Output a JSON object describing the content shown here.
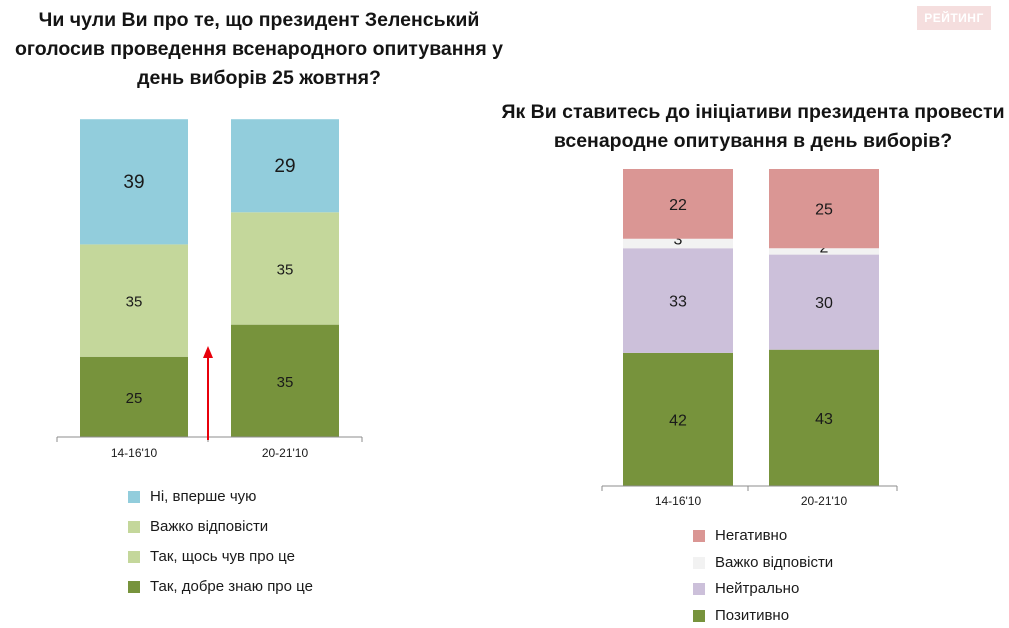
{
  "brand_label": "РЕЙТИНГ",
  "charts": [
    {
      "title": "Чи чули Ви про те, що президент Зеленський оголосив проведення  всенародного опитування у день виборів 25 жовтня?",
      "legend": [
        {
          "label": "Ні, вперше чую",
          "color": "#92cddc"
        },
        {
          "label": "Важко відповісти",
          "color": "#c4d79b"
        },
        {
          "label": "Так, щось чув про це",
          "color": "#c4d79b"
        },
        {
          "label": "Так, добре знаю про це",
          "color": "#77933c"
        }
      ]
    },
    {
      "title": "Як Ви ставитесь до ініціативи президента провести всенародне опитування в день виборів?",
      "legend": [
        {
          "label": "Негативно",
          "color": "#da9694"
        },
        {
          "label": "Важко відповісти",
          "color": "#f2f2f2"
        },
        {
          "label": "Нейтрально",
          "color": "#ccc0da"
        },
        {
          "label": "Позитивно",
          "color": "#77933c"
        }
      ]
    }
  ],
  "chart_data": [
    {
      "type": "bar",
      "stacked": true,
      "categories": [
        "14-16'10",
        "20-21'10"
      ],
      "series": [
        {
          "name": "Так, добре знаю про це",
          "values": [
            25,
            35
          ],
          "color": "#77933c"
        },
        {
          "name": "Так, щось чув про це",
          "values": [
            35,
            35
          ],
          "color": "#c4d79b"
        },
        {
          "name": "Ні, вперше чую",
          "values": [
            39,
            29
          ],
          "color": "#92cddc"
        }
      ],
      "annotation": "red upward arrow between bars",
      "legend_position": "bottom"
    },
    {
      "type": "bar",
      "stacked": true,
      "categories": [
        "14-16'10",
        "20-21'10"
      ],
      "series": [
        {
          "name": "Позитивно",
          "values": [
            42,
            43
          ],
          "color": "#77933c"
        },
        {
          "name": "Нейтрально",
          "values": [
            33,
            30
          ],
          "color": "#ccc0da"
        },
        {
          "name": "Важко відповісти",
          "values": [
            3,
            2
          ],
          "color": "#f2f2f2"
        },
        {
          "name": "Негативно",
          "values": [
            22,
            25
          ],
          "color": "#da9694"
        }
      ],
      "legend_position": "bottom"
    }
  ]
}
